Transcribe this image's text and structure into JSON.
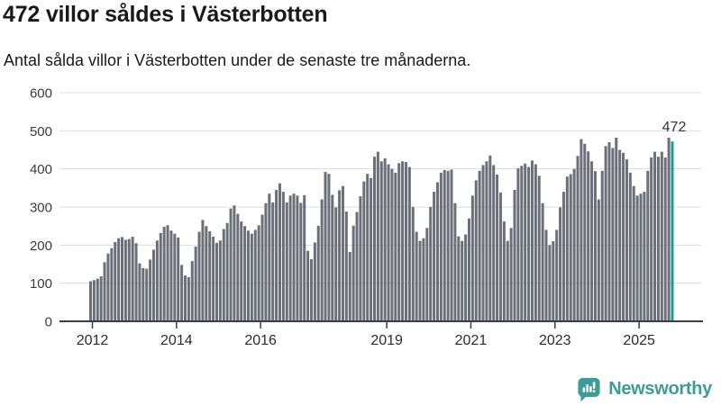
{
  "header": {
    "title": "472 villor såldes i Västerbotten",
    "subtitle": "Antal sålda villor i Västerbotten under de senaste tre månaderna."
  },
  "chart_data": {
    "type": "bar",
    "title": "472 villor såldes i Västerbotten",
    "xlabel": "",
    "ylabel": "",
    "ylim": [
      0,
      600
    ],
    "y_ticks": [
      0,
      100,
      200,
      300,
      400,
      500,
      600
    ],
    "x_ticks": [
      "2012",
      "2014",
      "2016",
      "2019",
      "2021",
      "2023",
      "2025"
    ],
    "start_year": 2012,
    "x_range": "2012–2025 (monthly, rolling 3-month totals)",
    "grid": true,
    "legend": "none",
    "bar_color": "#6b6f78",
    "highlight_color": "#199c99",
    "grid_color": "#dcdcdc",
    "axis_color": "#3d3d3d",
    "highlight_last": true,
    "highlight_label": "472",
    "values": [
      105,
      108,
      112,
      118,
      155,
      178,
      192,
      208,
      218,
      221,
      214,
      216,
      222,
      205,
      152,
      140,
      138,
      162,
      188,
      212,
      232,
      248,
      252,
      238,
      230,
      220,
      148,
      120,
      116,
      158,
      196,
      235,
      266,
      250,
      236,
      222,
      206,
      212,
      242,
      258,
      296,
      304,
      282,
      262,
      250,
      238,
      230,
      240,
      252,
      280,
      310,
      335,
      312,
      345,
      362,
      340,
      312,
      330,
      335,
      330,
      311,
      331,
      185,
      163,
      207,
      251,
      320,
      392,
      387,
      332,
      299,
      344,
      355,
      288,
      182,
      251,
      287,
      328,
      367,
      387,
      376,
      432,
      445,
      420,
      428,
      412,
      400,
      390,
      415,
      420,
      418,
      405,
      300,
      235,
      211,
      218,
      245,
      300,
      340,
      365,
      390,
      397,
      395,
      398,
      310,
      223,
      211,
      228,
      270,
      330,
      370,
      395,
      410,
      420,
      435,
      410,
      385,
      338,
      262,
      211,
      245,
      345,
      402,
      408,
      414,
      405,
      422,
      412,
      382,
      310,
      240,
      200,
      210,
      240,
      299,
      340,
      380,
      386,
      400,
      434,
      478,
      466,
      446,
      420,
      394,
      320,
      395,
      460,
      470,
      455,
      482,
      450,
      442,
      425,
      390,
      355,
      330,
      335,
      340,
      395,
      430,
      445,
      432,
      445,
      430,
      482,
      472
    ]
  },
  "footer": {
    "brand": "Newsworthy",
    "brand_color": "#3d9c95",
    "logo_icon": "bar-chart-speech-bubble"
  }
}
